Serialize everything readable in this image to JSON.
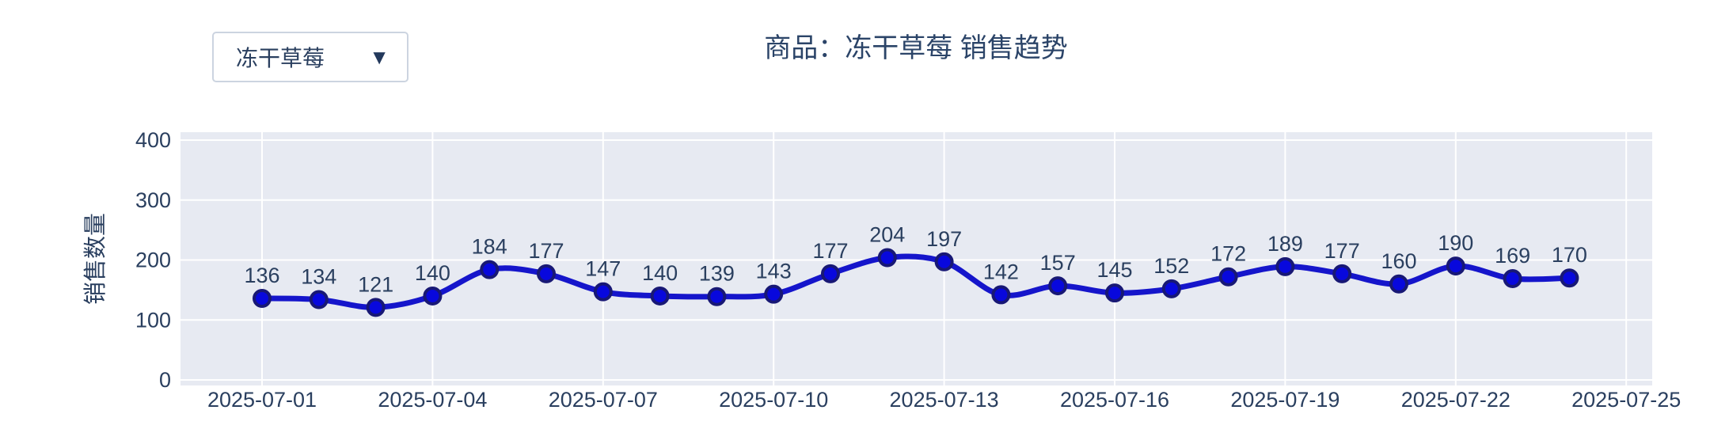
{
  "product_selector": {
    "value": "冻干草莓",
    "caret_icon": "chevron-down"
  },
  "chart_data": {
    "type": "line",
    "title": "商品：冻干草莓 销售趋势",
    "ylabel": "销售数量",
    "xlabel": "",
    "x": [
      "2025-07-01",
      "2025-07-02",
      "2025-07-03",
      "2025-07-04",
      "2025-07-05",
      "2025-07-06",
      "2025-07-07",
      "2025-07-08",
      "2025-07-09",
      "2025-07-10",
      "2025-07-11",
      "2025-07-12",
      "2025-07-13",
      "2025-07-14",
      "2025-07-15",
      "2025-07-16",
      "2025-07-17",
      "2025-07-18",
      "2025-07-19",
      "2025-07-20",
      "2025-07-21",
      "2025-07-22",
      "2025-07-23",
      "2025-07-24"
    ],
    "values": [
      136,
      134,
      121,
      140,
      184,
      177,
      147,
      140,
      139,
      143,
      177,
      204,
      197,
      142,
      157,
      145,
      152,
      172,
      189,
      177,
      160,
      190,
      169,
      170
    ],
    "point_labels_visible": true,
    "yticks": [
      0,
      100,
      200,
      300,
      400
    ],
    "ylim": [
      0,
      400
    ],
    "xtick_labels": [
      "2025-07-01",
      "2025-07-04",
      "2025-07-07",
      "2025-07-10",
      "2025-07-13",
      "2025-07-16",
      "2025-07-19",
      "2025-07-22",
      "2025-07-25"
    ],
    "xtick_day_step": 3,
    "grid": true,
    "legend_position": "none",
    "line_shape": "spline",
    "colors": {
      "line": "#1515cb",
      "marker_fill": "#0808dd",
      "marker_edge": "#181875",
      "plot_bg": "#e7eaf2",
      "gridline": "#ffffff",
      "text": "#2a3f5f"
    }
  }
}
